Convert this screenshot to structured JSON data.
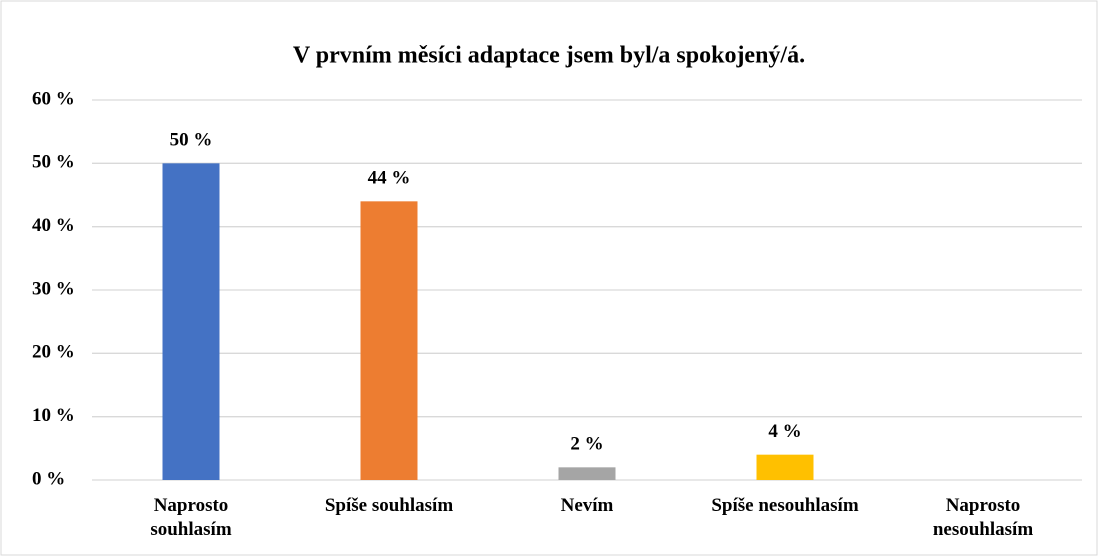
{
  "chart_data": {
    "type": "bar",
    "title": "V prvním měsíci adaptace jsem byl/a spokojený/á.",
    "categories": [
      "Naprosto souhlasím",
      "Spíše souhlasím",
      "Nevím",
      "Spíše nesouhlasím",
      "Naprosto nesouhlasím"
    ],
    "values": [
      50,
      44,
      2,
      4,
      null
    ],
    "value_labels": [
      "50 %",
      "44 %",
      "2 %",
      "4 %",
      null
    ],
    "colors": [
      "#4472c4",
      "#ed7d31",
      "#a5a5a5",
      "#ffc000",
      "#5b9bd5"
    ],
    "ylim": [
      0,
      60
    ],
    "yticks": [
      {
        "value": 0,
        "label": "0 %"
      },
      {
        "value": 10,
        "label": "10 %"
      },
      {
        "value": 20,
        "label": "20 %"
      },
      {
        "value": 30,
        "label": "30 %"
      },
      {
        "value": 40,
        "label": "40 %"
      },
      {
        "value": 50,
        "label": "50 %"
      },
      {
        "value": 60,
        "label": "60 %"
      }
    ],
    "grid": true
  }
}
